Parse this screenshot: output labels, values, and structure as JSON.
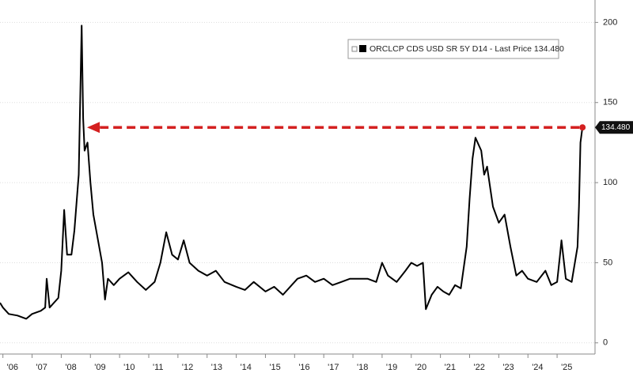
{
  "chart_data": {
    "type": "line",
    "x": [
      2005.9,
      2006.0,
      2006.2,
      2006.5,
      2006.8,
      2007.0,
      2007.3,
      2007.45,
      2007.5,
      2007.6,
      2007.9,
      2008.0,
      2008.1,
      2008.2,
      2008.35,
      2008.45,
      2008.6,
      2008.7,
      2008.75,
      2008.8,
      2008.9,
      2009.0,
      2009.1,
      2009.25,
      2009.4,
      2009.5,
      2009.6,
      2009.8,
      2010.0,
      2010.3,
      2010.6,
      2010.9,
      2011.2,
      2011.4,
      2011.6,
      2011.8,
      2012.0,
      2012.2,
      2012.4,
      2012.7,
      2013.0,
      2013.3,
      2013.6,
      2014.0,
      2014.3,
      2014.6,
      2015.0,
      2015.3,
      2015.6,
      2015.9,
      2016.1,
      2016.4,
      2016.7,
      2017.0,
      2017.3,
      2017.6,
      2017.9,
      2018.1,
      2018.5,
      2018.8,
      2019.0,
      2019.2,
      2019.5,
      2019.8,
      2020.0,
      2020.2,
      2020.4,
      2020.5,
      2020.7,
      2020.9,
      2021.1,
      2021.3,
      2021.5,
      2021.7,
      2021.9,
      2022.0,
      2022.1,
      2022.2,
      2022.4,
      2022.5,
      2022.6,
      2022.8,
      2023.0,
      2023.2,
      2023.4,
      2023.6,
      2023.8,
      2024.0,
      2024.3,
      2024.6,
      2024.8,
      2025.0,
      2025.1,
      2025.15,
      2025.3,
      2025.5,
      2025.7,
      2025.75,
      2025.8,
      2025.87
    ],
    "series": [
      {
        "name": "ORCLCP CDS USD SR 5Y D14 - Last Price 134.480",
        "color": "#000000",
        "values": [
          25,
          22,
          18,
          17,
          15,
          18,
          20,
          22,
          40,
          22,
          28,
          45,
          83,
          55,
          55,
          70,
          105,
          198,
          140,
          120,
          125,
          100,
          80,
          65,
          50,
          27,
          40,
          36,
          40,
          44,
          38,
          33,
          38,
          50,
          69,
          55,
          52,
          64,
          50,
          45,
          42,
          45,
          38,
          35,
          33,
          38,
          32,
          35,
          30,
          36,
          40,
          42,
          38,
          40,
          36,
          38,
          40,
          40,
          40,
          38,
          50,
          42,
          38,
          45,
          50,
          48,
          50,
          21,
          30,
          35,
          32,
          30,
          36,
          34,
          60,
          90,
          115,
          128,
          120,
          105,
          110,
          85,
          75,
          80,
          60,
          42,
          45,
          40,
          38,
          45,
          36,
          38,
          55,
          64,
          40,
          38,
          60,
          85,
          125,
          134.48
        ]
      }
    ],
    "last_price_label": "134.480",
    "xlim": [
      2005.9,
      2026.3
    ],
    "xticks": [
      {
        "value": 2006,
        "label": "'06"
      },
      {
        "value": 2007,
        "label": "'07"
      },
      {
        "value": 2008,
        "label": "'08"
      },
      {
        "value": 2009,
        "label": "'09"
      },
      {
        "value": 2010,
        "label": "'10"
      },
      {
        "value": 2011,
        "label": "'11"
      },
      {
        "value": 2012,
        "label": "'12"
      },
      {
        "value": 2013,
        "label": "'13"
      },
      {
        "value": 2014,
        "label": "'14"
      },
      {
        "value": 2015,
        "label": "'15"
      },
      {
        "value": 2016,
        "label": "'16"
      },
      {
        "value": 2017,
        "label": "'17"
      },
      {
        "value": 2018,
        "label": "'18"
      },
      {
        "value": 2019,
        "label": "'19"
      },
      {
        "value": 2020,
        "label": "'20"
      },
      {
        "value": 2021,
        "label": "'21"
      },
      {
        "value": 2022,
        "label": "'22"
      },
      {
        "value": 2023,
        "label": "'23"
      },
      {
        "value": 2024,
        "label": "'24"
      },
      {
        "value": 2025,
        "label": "'25"
      }
    ],
    "ylim": [
      -7,
      214
    ],
    "yticks": [
      0,
      50,
      100,
      150,
      200
    ],
    "grid": true
  }
}
